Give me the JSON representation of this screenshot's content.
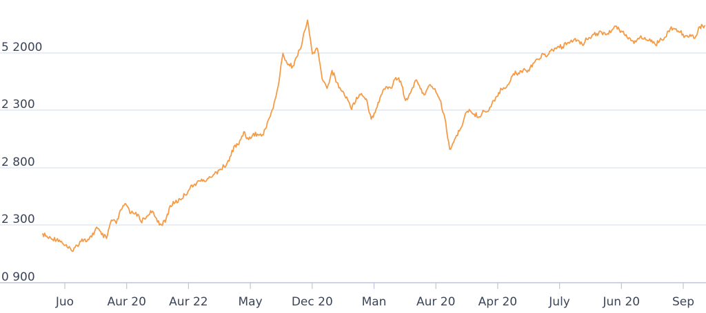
{
  "chart_data": {
    "type": "line",
    "title": "",
    "xlabel": "",
    "ylabel": "",
    "grid": true,
    "y_ticks": [
      "5 2000",
      "2 300",
      "2 800",
      "2 300",
      "0 900"
    ],
    "x_ticks": [
      "Juo",
      "Aur 20",
      "Aur 22",
      "May",
      "Dec 20",
      "Man",
      "Aur 20",
      "Apr 20",
      "July",
      "Jun 20",
      "Sep"
    ],
    "colors": {
      "line": "#F59A45",
      "grid": "#DCE3EE",
      "axis": "#B9C6DA",
      "tick_label": "#3A4456"
    },
    "series": [
      {
        "values": [
          0.1,
          0.085,
          0.077,
          0.08,
          0.062,
          0.044,
          0.028,
          0.052,
          0.079,
          0.069,
          0.087,
          0.128,
          0.097,
          0.081,
          0.157,
          0.143,
          0.2,
          0.222,
          0.186,
          0.189,
          0.152,
          0.163,
          0.196,
          0.168,
          0.141,
          0.148,
          0.217,
          0.229,
          0.243,
          0.262,
          0.286,
          0.306,
          0.319,
          0.317,
          0.337,
          0.347,
          0.364,
          0.379,
          0.401,
          0.462,
          0.47,
          0.523,
          0.49,
          0.516,
          0.509,
          0.51,
          0.571,
          0.62,
          0.709,
          0.848,
          0.8,
          0.795,
          0.838,
          0.902,
          0.985,
          0.845,
          0.868,
          0.741,
          0.702,
          0.777,
          0.727,
          0.69,
          0.667,
          0.615,
          0.665,
          0.681,
          0.659,
          0.575,
          0.618,
          0.674,
          0.709,
          0.703,
          0.747,
          0.732,
          0.652,
          0.682,
          0.735,
          0.701,
          0.677,
          0.718,
          0.701,
          0.654,
          0.582,
          0.45,
          0.49,
          0.526,
          0.583,
          0.615,
          0.596,
          0.585,
          0.608,
          0.611,
          0.652,
          0.685,
          0.705,
          0.719,
          0.763,
          0.766,
          0.779,
          0.778,
          0.806,
          0.823,
          0.847,
          0.84,
          0.861,
          0.875,
          0.874,
          0.89,
          0.894,
          0.902,
          0.886,
          0.905,
          0.92,
          0.93,
          0.935,
          0.925,
          0.94,
          0.96,
          0.94,
          0.925,
          0.9,
          0.895,
          0.92,
          0.904,
          0.896,
          0.882,
          0.91,
          0.915,
          0.95,
          0.948,
          0.935,
          0.919,
          0.925,
          0.91,
          0.958,
          0.962
        ]
      }
    ]
  }
}
